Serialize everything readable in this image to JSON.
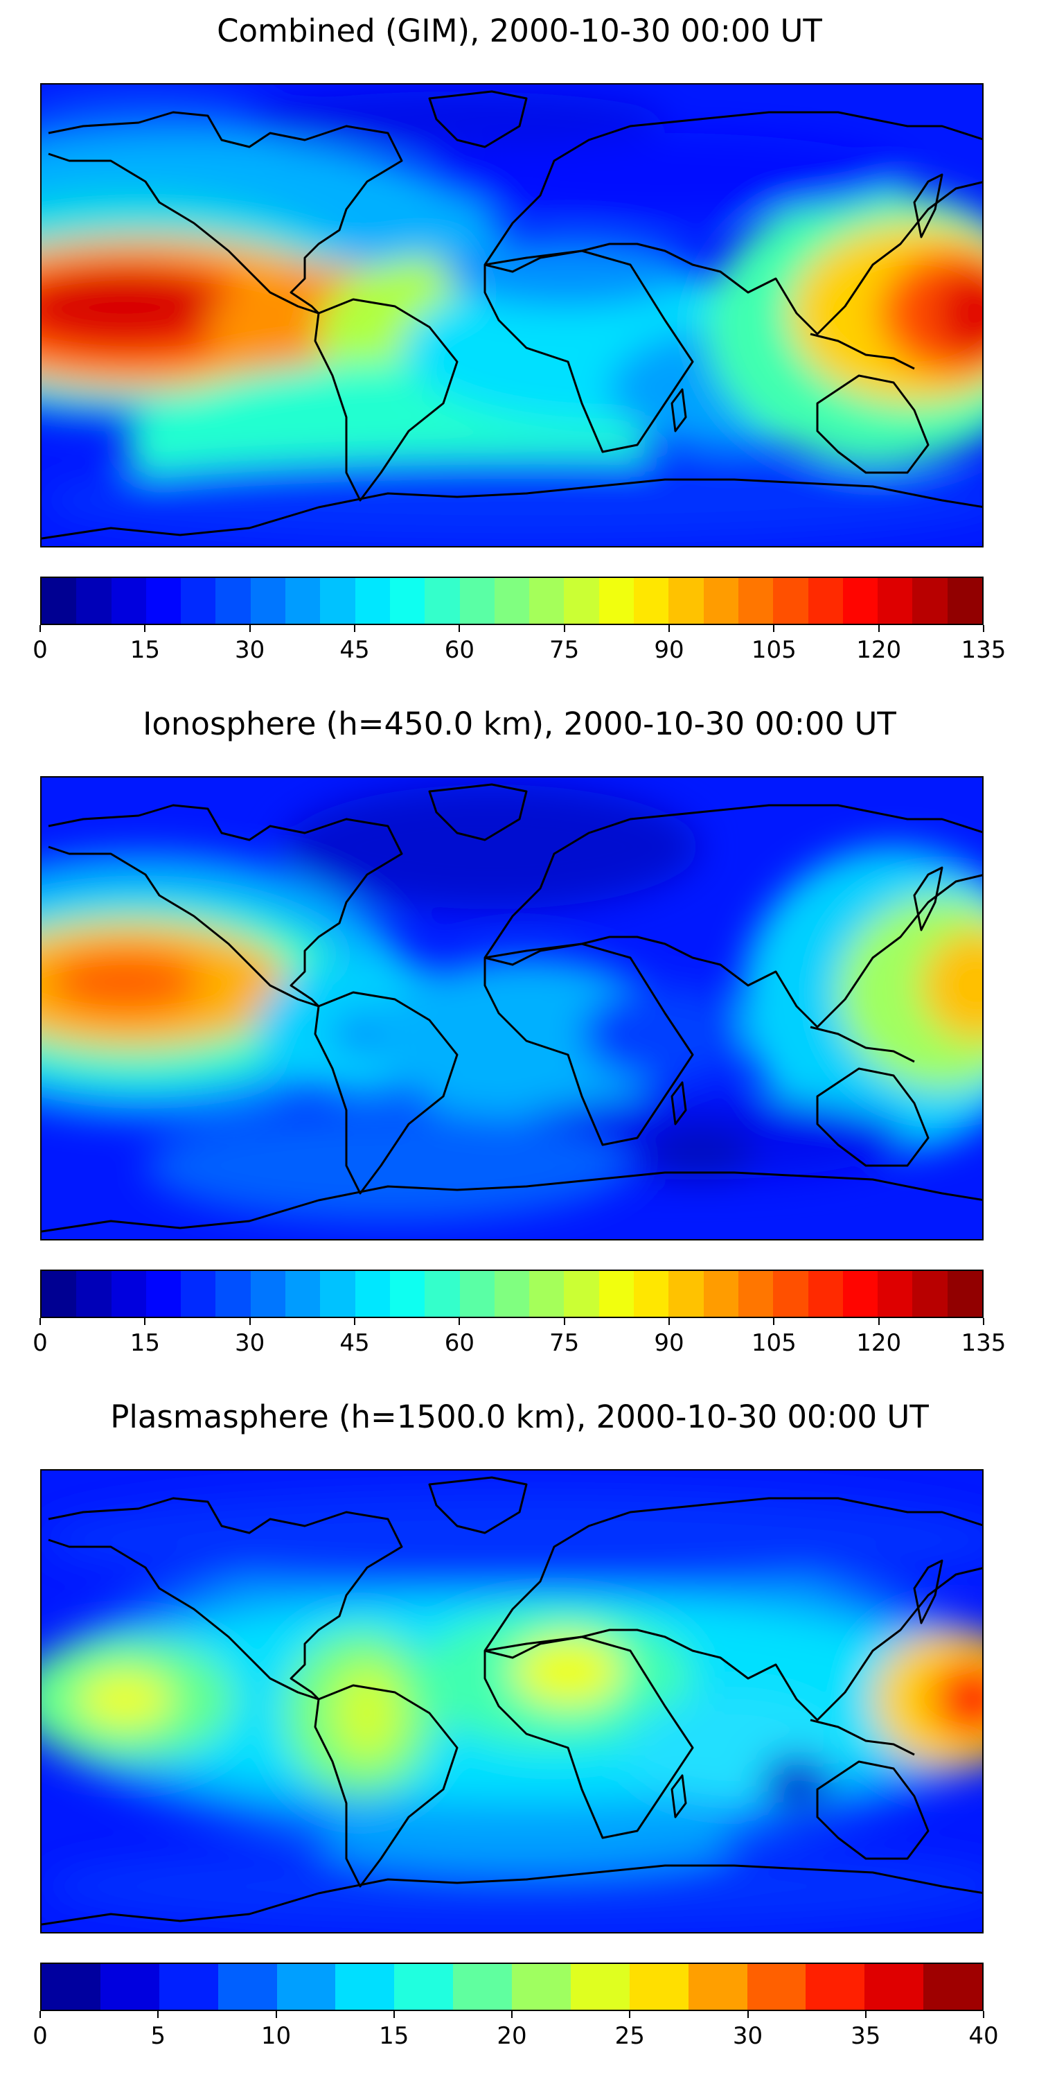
{
  "panels": [
    {
      "title": "Combined (GIM), 2000-10-30 00:00 UT",
      "colorbar": {
        "min": 0,
        "max": 135,
        "levels": 27,
        "tick_labels": [
          "0",
          "15",
          "30",
          "45",
          "60",
          "75",
          "90",
          "105",
          "120",
          "135"
        ]
      }
    },
    {
      "title": "Ionosphere  (h=450.0 km), 2000-10-30 00:00 UT",
      "colorbar": {
        "min": 0,
        "max": 135,
        "levels": 27,
        "tick_labels": [
          "0",
          "15",
          "30",
          "45",
          "60",
          "75",
          "90",
          "105",
          "120",
          "135"
        ]
      }
    },
    {
      "title": "Plasmasphere (h=1500.0 km), 2000-10-30 00:00 UT",
      "colorbar": {
        "min": 0,
        "max": 40,
        "levels": 16,
        "tick_labels": [
          "0",
          "5",
          "10",
          "15",
          "20",
          "25",
          "30",
          "35",
          "40"
        ]
      }
    }
  ],
  "colormap": "jet",
  "map_features": [
    "coastlines",
    "continents"
  ]
}
